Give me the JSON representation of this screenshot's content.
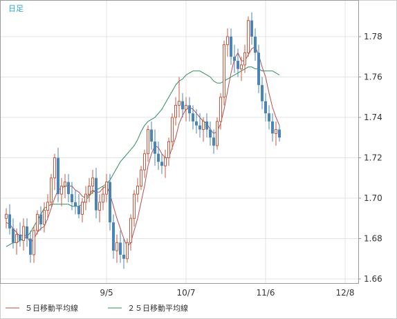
{
  "chart_data": {
    "type": "candlestick",
    "period_label": "日足",
    "ylim": [
      1.655,
      1.795
    ],
    "yticks": [
      "1.66",
      "1.68",
      "1.70",
      "1.72",
      "1.74",
      "1.76",
      "1.78"
    ],
    "xticks": [
      {
        "label": "9/5",
        "index": 29
      },
      {
        "label": "10/7",
        "index": 52
      },
      {
        "label": "11/6",
        "index": 75
      },
      {
        "label": "12/8",
        "index": 98
      }
    ],
    "colors": {
      "up": "#c9573e",
      "down": "#4a84b9",
      "ma5": "#b84b4b",
      "ma25": "#2a8f5a"
    },
    "legend": [
      {
        "label": "５日移動平均線",
        "color": "#b84b4b"
      },
      {
        "label": "２５日移動平均線",
        "color": "#2a8f5a"
      }
    ],
    "candles": [
      [
        1.69,
        1.695,
        1.685,
        1.692
      ],
      [
        1.692,
        1.697,
        1.682,
        1.685
      ],
      [
        1.685,
        1.69,
        1.675,
        1.678
      ],
      [
        1.678,
        1.685,
        1.672,
        1.682
      ],
      [
        1.682,
        1.688,
        1.676,
        1.679
      ],
      [
        1.679,
        1.69,
        1.674,
        1.686
      ],
      [
        1.686,
        1.69,
        1.676,
        1.68
      ],
      [
        1.68,
        1.684,
        1.668,
        1.672
      ],
      [
        1.672,
        1.686,
        1.668,
        1.684
      ],
      [
        1.684,
        1.694,
        1.682,
        1.692
      ],
      [
        1.692,
        1.696,
        1.684,
        1.687
      ],
      [
        1.687,
        1.698,
        1.683,
        1.694
      ],
      [
        1.694,
        1.702,
        1.69,
        1.698
      ],
      [
        1.698,
        1.712,
        1.696,
        1.71
      ],
      [
        1.71,
        1.722,
        1.704,
        1.72
      ],
      [
        1.72,
        1.725,
        1.698,
        1.702
      ],
      [
        1.702,
        1.71,
        1.696,
        1.706
      ],
      [
        1.706,
        1.712,
        1.7,
        1.708
      ],
      [
        1.708,
        1.712,
        1.698,
        1.702
      ],
      [
        1.702,
        1.708,
        1.694,
        1.698
      ],
      [
        1.698,
        1.704,
        1.692,
        1.696
      ],
      [
        1.696,
        1.702,
        1.69,
        1.692
      ],
      [
        1.692,
        1.7,
        1.688,
        1.698
      ],
      [
        1.698,
        1.706,
        1.694,
        1.702
      ],
      [
        1.702,
        1.71,
        1.698,
        1.706
      ],
      [
        1.706,
        1.714,
        1.702,
        1.71
      ],
      [
        1.71,
        1.715,
        1.69,
        1.694
      ],
      [
        1.694,
        1.702,
        1.688,
        1.698
      ],
      [
        1.698,
        1.706,
        1.694,
        1.702
      ],
      [
        1.702,
        1.712,
        1.698,
        1.708
      ],
      [
        1.708,
        1.712,
        1.684,
        1.688
      ],
      [
        1.688,
        1.692,
        1.67,
        1.674
      ],
      [
        1.674,
        1.682,
        1.668,
        1.678
      ],
      [
        1.678,
        1.684,
        1.668,
        1.672
      ],
      [
        1.672,
        1.68,
        1.665,
        1.67
      ],
      [
        1.67,
        1.68,
        1.668,
        1.678
      ],
      [
        1.678,
        1.692,
        1.674,
        1.69
      ],
      [
        1.69,
        1.704,
        1.686,
        1.702
      ],
      [
        1.702,
        1.71,
        1.698,
        1.706
      ],
      [
        1.706,
        1.716,
        1.704,
        1.714
      ],
      [
        1.714,
        1.724,
        1.71,
        1.722
      ],
      [
        1.722,
        1.736,
        1.718,
        1.734
      ],
      [
        1.734,
        1.738,
        1.724,
        1.728
      ],
      [
        1.728,
        1.734,
        1.716,
        1.722
      ],
      [
        1.722,
        1.728,
        1.714,
        1.718
      ],
      [
        1.718,
        1.722,
        1.712,
        1.716
      ],
      [
        1.716,
        1.724,
        1.71,
        1.72
      ],
      [
        1.72,
        1.73,
        1.716,
        1.728
      ],
      [
        1.728,
        1.742,
        1.724,
        1.74
      ],
      [
        1.74,
        1.75,
        1.736,
        1.746
      ],
      [
        1.746,
        1.76,
        1.74,
        1.748
      ],
      [
        1.748,
        1.752,
        1.74,
        1.744
      ],
      [
        1.744,
        1.75,
        1.738,
        1.746
      ],
      [
        1.746,
        1.75,
        1.738,
        1.742
      ],
      [
        1.742,
        1.746,
        1.734,
        1.738
      ],
      [
        1.738,
        1.744,
        1.732,
        1.736
      ],
      [
        1.736,
        1.742,
        1.73,
        1.734
      ],
      [
        1.734,
        1.74,
        1.728,
        1.738
      ],
      [
        1.738,
        1.742,
        1.73,
        1.734
      ],
      [
        1.734,
        1.738,
        1.726,
        1.73
      ],
      [
        1.73,
        1.734,
        1.722,
        1.726
      ],
      [
        1.726,
        1.74,
        1.724,
        1.738
      ],
      [
        1.738,
        1.752,
        1.734,
        1.75
      ],
      [
        1.75,
        1.778,
        1.746,
        1.776
      ],
      [
        1.776,
        1.784,
        1.77,
        1.78
      ],
      [
        1.78,
        1.784,
        1.766,
        1.77
      ],
      [
        1.77,
        1.776,
        1.762,
        1.768
      ],
      [
        1.768,
        1.774,
        1.76,
        1.764
      ],
      [
        1.764,
        1.77,
        1.758,
        1.766
      ],
      [
        1.766,
        1.776,
        1.762,
        1.772
      ],
      [
        1.772,
        1.79,
        1.77,
        1.788
      ],
      [
        1.788,
        1.792,
        1.776,
        1.78
      ],
      [
        1.78,
        1.784,
        1.768,
        1.772
      ],
      [
        1.772,
        1.776,
        1.752,
        1.756
      ],
      [
        1.756,
        1.76,
        1.744,
        1.748
      ],
      [
        1.748,
        1.752,
        1.738,
        1.742
      ],
      [
        1.742,
        1.746,
        1.734,
        1.738
      ],
      [
        1.738,
        1.742,
        1.728,
        1.732
      ],
      [
        1.732,
        1.738,
        1.726,
        1.734
      ],
      [
        1.734,
        1.736,
        1.728,
        1.73
      ]
    ],
    "ma5": [
      1.688,
      1.687,
      1.685,
      1.683,
      1.681,
      1.682,
      1.681,
      1.678,
      1.68,
      1.683,
      1.685,
      1.686,
      1.69,
      1.695,
      1.7,
      1.704,
      1.705,
      1.706,
      1.706,
      1.706,
      1.704,
      1.703,
      1.701,
      1.7,
      1.702,
      1.704,
      1.703,
      1.703,
      1.705,
      1.706,
      1.702,
      1.696,
      1.69,
      1.685,
      1.68,
      1.676,
      1.678,
      1.684,
      1.69,
      1.698,
      1.706,
      1.716,
      1.722,
      1.726,
      1.725,
      1.722,
      1.72,
      1.72,
      1.725,
      1.73,
      1.737,
      1.741,
      1.744,
      1.745,
      1.744,
      1.742,
      1.74,
      1.738,
      1.737,
      1.734,
      1.732,
      1.733,
      1.737,
      1.744,
      1.753,
      1.762,
      1.769,
      1.772,
      1.768,
      1.768,
      1.771,
      1.774,
      1.775,
      1.771,
      1.765,
      1.76,
      1.752,
      1.745,
      1.74,
      1.736
    ],
    "ma25": [
      1.676,
      1.677,
      1.678,
      1.678,
      1.679,
      1.68,
      1.681,
      1.683,
      1.686,
      1.689,
      1.692,
      1.695,
      1.696,
      1.697,
      1.697,
      1.697,
      1.697,
      1.697,
      1.697,
      1.696,
      1.696,
      1.696,
      1.697,
      1.699,
      1.701,
      1.703,
      1.704,
      1.705,
      1.706,
      1.707,
      1.709,
      1.712,
      1.715,
      1.718,
      1.72,
      1.722,
      1.724,
      1.726,
      1.729,
      1.733,
      1.736,
      1.738,
      1.739,
      1.74,
      1.742,
      1.744,
      1.747,
      1.75,
      1.753,
      1.756,
      1.758,
      1.759,
      1.761,
      1.762,
      1.763,
      1.763,
      1.763,
      1.762,
      1.761,
      1.76,
      1.758,
      1.757,
      1.757,
      1.758,
      1.759,
      1.76,
      1.761,
      1.762,
      1.763,
      1.764,
      1.765,
      1.765,
      1.764,
      1.764,
      1.763,
      1.763,
      1.763,
      1.763,
      1.762,
      1.761
    ]
  }
}
